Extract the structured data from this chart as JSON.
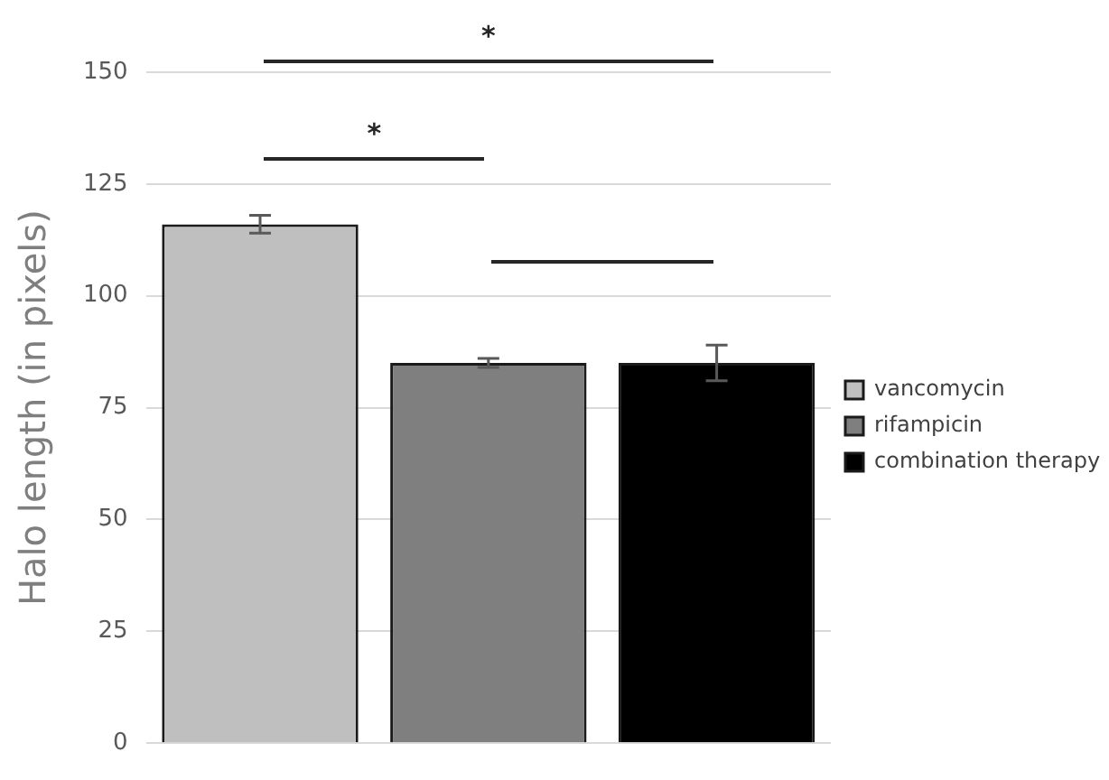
{
  "chart_data": {
    "type": "bar",
    "ylabel": "Halo length (in pixels)",
    "categories": [
      null,
      null,
      null
    ],
    "series": [
      {
        "name": "vancomycin",
        "color": "#bfbfbf",
        "values": [
          116,
          null,
          null
        ],
        "errors": [
          2,
          null,
          null
        ]
      },
      {
        "name": "rifampicin",
        "color": "#7f7f7f",
        "values": [
          null,
          85,
          null
        ],
        "errors": [
          null,
          1,
          null
        ]
      },
      {
        "name": "combination therapy",
        "color": "#000000",
        "values": [
          null,
          null,
          85
        ],
        "errors": [
          null,
          null,
          4
        ]
      }
    ],
    "ylim": [
      0,
      150
    ],
    "yticks": [
      0,
      25,
      50,
      75,
      100,
      125,
      150
    ],
    "grid": "y",
    "legend": "right",
    "annotations": [
      "*",
      "*"
    ]
  }
}
